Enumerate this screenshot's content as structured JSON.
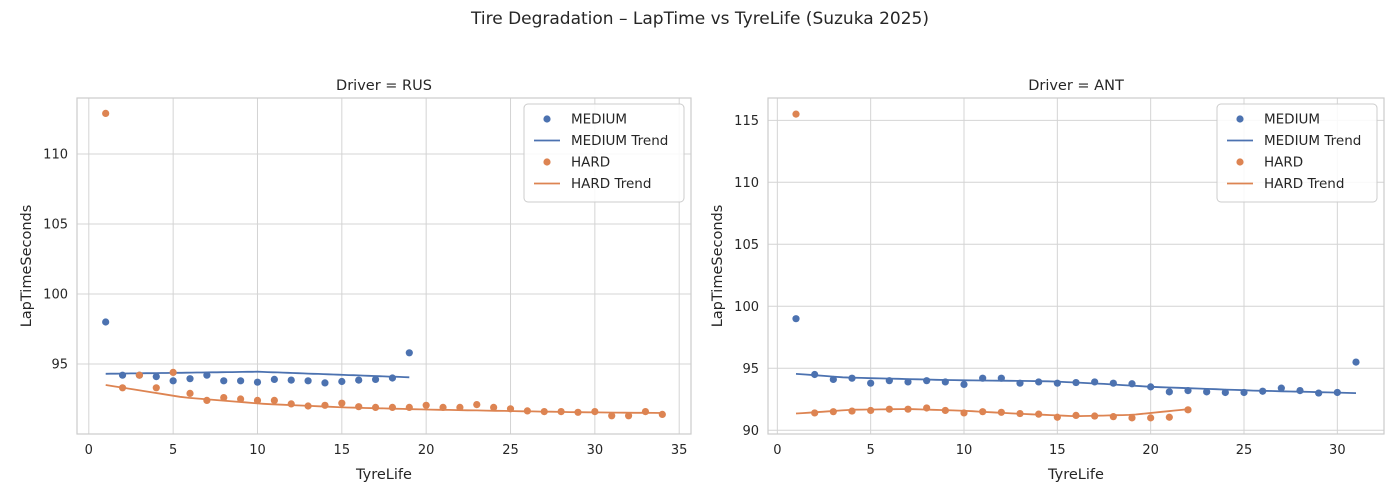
{
  "chart_data": {
    "type": "scatter",
    "suptitle": "Tire Degradation – LapTime vs TyreLife (Suzuka 2025)",
    "colors": {
      "MEDIUM": "#4c72b0",
      "HARD": "#dd8452"
    },
    "legend": {
      "placement": "top-right",
      "entries": [
        "MEDIUM",
        "MEDIUM Trend",
        "HARD",
        "HARD Trend"
      ]
    },
    "grid": true,
    "panels": [
      {
        "title": "Driver = RUS",
        "xlabel": "TyreLife",
        "ylabel": "LapTimeSeconds",
        "xlim": [
          -0.7,
          35.7
        ],
        "ylim": [
          90.0,
          114.0
        ],
        "xticks": [
          0,
          5,
          10,
          15,
          20,
          25,
          30,
          35
        ],
        "yticks": [
          95,
          100,
          105,
          110
        ],
        "series": [
          {
            "name": "MEDIUM",
            "x": [
              1,
              2,
              3,
              4,
              5,
              6,
              7,
              8,
              9,
              10,
              11,
              12,
              13,
              14,
              15,
              16,
              17,
              18,
              19
            ],
            "y": [
              98.0,
              94.2,
              94.2,
              94.1,
              93.8,
              93.95,
              94.2,
              93.8,
              93.8,
              93.7,
              93.9,
              93.85,
              93.8,
              93.65,
              93.75,
              93.85,
              93.9,
              94.0,
              95.8
            ],
            "trend_x": [
              1,
              19
            ],
            "trend_y": [
              94.3,
              94.05
            ],
            "trend_curve": [
              0,
              0,
              -0.55
            ]
          },
          {
            "name": "HARD",
            "x": [
              1,
              2,
              3,
              4,
              5,
              6,
              7,
              8,
              9,
              10,
              11,
              12,
              13,
              14,
              15,
              16,
              17,
              18,
              19,
              20,
              21,
              22,
              23,
              24,
              25,
              26,
              27,
              28,
              29,
              30,
              31,
              32,
              33,
              34
            ],
            "y": [
              112.9,
              93.3,
              94.2,
              93.3,
              94.4,
              92.9,
              92.4,
              92.6,
              92.5,
              92.4,
              92.4,
              92.15,
              92.0,
              92.05,
              92.2,
              91.95,
              91.9,
              91.9,
              91.9,
              92.05,
              91.9,
              91.9,
              92.1,
              91.9,
              91.8,
              91.65,
              91.6,
              91.6,
              91.55,
              91.6,
              91.3,
              91.3,
              91.6,
              91.4
            ],
            "trend_x": [
              1,
              34
            ],
            "trend_y": [
              93.5,
              91.5
            ],
            "trend_curve": [
              0,
              -0.9,
              -1.35,
              -1.6,
              -1.75,
              -1.85,
              -1.95,
              -2.0
            ]
          }
        ]
      },
      {
        "title": "Driver = ANT",
        "xlabel": "TyreLife",
        "ylabel": "LapTimeSeconds",
        "xlim": [
          -0.5,
          32.5
        ],
        "ylim": [
          89.7,
          116.8
        ],
        "xticks": [
          0,
          5,
          10,
          15,
          20,
          25,
          30
        ],
        "yticks": [
          90,
          95,
          100,
          105,
          110,
          115
        ],
        "series": [
          {
            "name": "MEDIUM",
            "x": [
              1,
              2,
              3,
              4,
              5,
              6,
              7,
              8,
              9,
              10,
              11,
              12,
              13,
              14,
              15,
              16,
              17,
              18,
              19,
              20,
              21,
              22,
              23,
              24,
              25,
              26,
              27,
              28,
              29,
              30,
              31
            ],
            "y": [
              99.0,
              94.5,
              94.1,
              94.2,
              93.8,
              94.0,
              93.9,
              94.0,
              93.9,
              93.7,
              94.2,
              94.2,
              93.8,
              93.9,
              93.8,
              93.85,
              93.9,
              93.8,
              93.75,
              93.5,
              93.1,
              93.2,
              93.1,
              93.05,
              93.05,
              93.15,
              93.4,
              93.2,
              93.0,
              93.05,
              95.5
            ],
            "trend_x": [
              1,
              31
            ],
            "trend_y": [
              94.55,
              93.0
            ],
            "trend_curve": [
              0,
              -0.3,
              -0.4,
              -0.5,
              -0.55,
              -0.6,
              -0.8,
              -1.05,
              -1.2,
              -1.35,
              -1.45,
              -1.55
            ]
          },
          {
            "name": "HARD",
            "x": [
              1,
              2,
              3,
              4,
              5,
              6,
              7,
              8,
              9,
              10,
              11,
              12,
              13,
              14,
              15,
              16,
              17,
              18,
              19,
              20,
              21,
              22
            ],
            "y": [
              115.5,
              91.4,
              91.5,
              91.55,
              91.6,
              91.7,
              91.7,
              91.8,
              91.6,
              91.4,
              91.5,
              91.45,
              91.35,
              91.3,
              91.05,
              91.2,
              91.15,
              91.1,
              91.0,
              91.0,
              91.05,
              91.65
            ],
            "trend_x": [
              1,
              22
            ],
            "trend_y": [
              91.35,
              91.7
            ],
            "trend_curve": [
              0,
              0.3,
              0.35,
              0.2,
              -0.05,
              -0.25,
              -0.15,
              0.3
            ]
          }
        ]
      }
    ]
  }
}
